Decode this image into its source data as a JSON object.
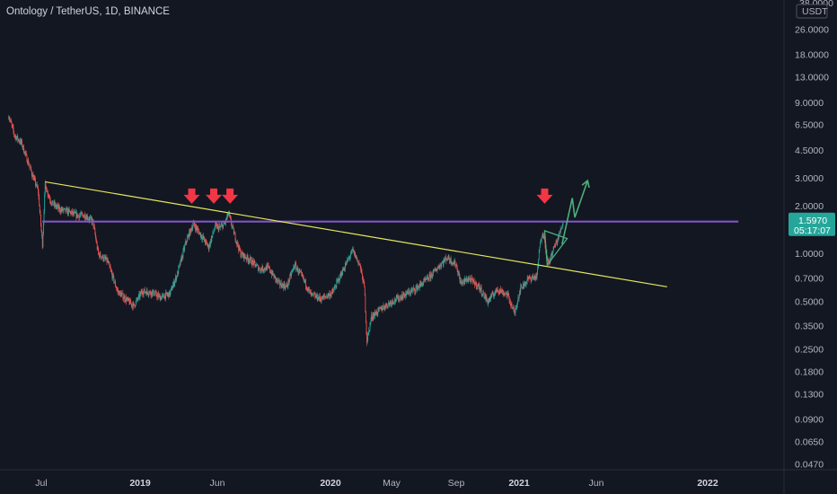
{
  "header": {
    "title": "Ontology / TetherUS, 1D, BINANCE"
  },
  "price_axis": {
    "currency": "USDT",
    "cutoff_label": "38.0000",
    "current_price": "1.5970",
    "countdown": "05:17:07",
    "current_price_color": "#26a69a"
  },
  "colors": {
    "background": "#131722",
    "up": "#26a69a",
    "down": "#ef5350",
    "trendline": "#e6e65c",
    "resistance": "#7e57c2",
    "arrow": "#f23645",
    "projection": "#4caf7d"
  },
  "chart_data": {
    "type": "candlestick",
    "title": "Ontology / TetherUS, 1D, BINANCE",
    "scale": "log",
    "ylim": [
      0.045,
      35
    ],
    "y_ticks": [
      {
        "value": 26,
        "label": "26.0000"
      },
      {
        "value": 18,
        "label": "18.0000"
      },
      {
        "value": 13,
        "label": "13.0000"
      },
      {
        "value": 9,
        "label": "9.0000"
      },
      {
        "value": 6.5,
        "label": "6.5000"
      },
      {
        "value": 4.5,
        "label": "4.5000"
      },
      {
        "value": 3,
        "label": "3.0000"
      },
      {
        "value": 2,
        "label": "2.0000"
      },
      {
        "value": 1,
        "label": "1.0000"
      },
      {
        "value": 0.7,
        "label": "0.7000"
      },
      {
        "value": 0.5,
        "label": "0.5000"
      },
      {
        "value": 0.35,
        "label": "0.3500"
      },
      {
        "value": 0.25,
        "label": "0.2500"
      },
      {
        "value": 0.18,
        "label": "0.1800"
      },
      {
        "value": 0.13,
        "label": "0.1300"
      },
      {
        "value": 0.09,
        "label": "0.0900"
      },
      {
        "value": 0.065,
        "label": "0.0650"
      },
      {
        "value": 0.047,
        "label": "0.0470"
      }
    ],
    "x_ticks": [
      {
        "date": "2018-07-01",
        "label": "Jul",
        "bold": false
      },
      {
        "date": "2019-01-01",
        "label": "2019",
        "bold": true
      },
      {
        "date": "2019-06-01",
        "label": "Jun",
        "bold": false
      },
      {
        "date": "2020-01-01",
        "label": "2020",
        "bold": true
      },
      {
        "date": "2020-05-01",
        "label": "May",
        "bold": false
      },
      {
        "date": "2020-09-01",
        "label": "Sep",
        "bold": false
      },
      {
        "date": "2021-01-01",
        "label": "2021",
        "bold": true
      },
      {
        "date": "2021-06-01",
        "label": "Jun",
        "bold": false
      },
      {
        "date": "2022-01-01",
        "label": "2022",
        "bold": true
      }
    ],
    "price_path": [
      [
        "2018-05-01",
        7.5
      ],
      [
        "2018-05-12",
        5.6
      ],
      [
        "2018-05-25",
        5.0
      ],
      [
        "2018-06-05",
        3.9
      ],
      [
        "2018-06-15",
        3.1
      ],
      [
        "2018-06-25",
        2.5
      ],
      [
        "2018-07-03",
        1.15
      ],
      [
        "2018-07-08",
        2.7
      ],
      [
        "2018-07-20",
        2.1
      ],
      [
        "2018-08-05",
        1.9
      ],
      [
        "2018-08-20",
        1.85
      ],
      [
        "2018-09-05",
        1.75
      ],
      [
        "2018-09-20",
        1.75
      ],
      [
        "2018-10-05",
        1.6
      ],
      [
        "2018-10-15",
        1.0
      ],
      [
        "2018-11-01",
        0.9
      ],
      [
        "2018-11-20",
        0.58
      ],
      [
        "2018-12-05",
        0.52
      ],
      [
        "2018-12-20",
        0.47
      ],
      [
        "2019-01-05",
        0.58
      ],
      [
        "2019-01-25",
        0.57
      ],
      [
        "2019-02-10",
        0.53
      ],
      [
        "2019-02-28",
        0.56
      ],
      [
        "2019-03-15",
        0.75
      ],
      [
        "2019-04-01",
        1.2
      ],
      [
        "2019-04-15",
        1.55
      ],
      [
        "2019-05-01",
        1.3
      ],
      [
        "2019-05-15",
        1.1
      ],
      [
        "2019-05-28",
        1.5
      ],
      [
        "2019-06-05",
        1.45
      ],
      [
        "2019-06-15",
        1.55
      ],
      [
        "2019-06-22",
        1.8
      ],
      [
        "2019-07-01",
        1.4
      ],
      [
        "2019-07-15",
        1.0
      ],
      [
        "2019-08-01",
        0.92
      ],
      [
        "2019-08-20",
        0.8
      ],
      [
        "2019-09-05",
        0.82
      ],
      [
        "2019-09-25",
        0.65
      ],
      [
        "2019-10-10",
        0.62
      ],
      [
        "2019-10-25",
        0.85
      ],
      [
        "2019-11-10",
        0.7
      ],
      [
        "2019-11-25",
        0.55
      ],
      [
        "2019-12-15",
        0.52
      ],
      [
        "2020-01-05",
        0.57
      ],
      [
        "2020-01-25",
        0.78
      ],
      [
        "2020-02-14",
        1.05
      ],
      [
        "2020-02-28",
        0.85
      ],
      [
        "2020-03-08",
        0.62
      ],
      [
        "2020-03-13",
        0.28
      ],
      [
        "2020-03-22",
        0.4
      ],
      [
        "2020-04-10",
        0.45
      ],
      [
        "2020-05-01",
        0.5
      ],
      [
        "2020-05-25",
        0.55
      ],
      [
        "2020-06-15",
        0.6
      ],
      [
        "2020-07-10",
        0.7
      ],
      [
        "2020-08-01",
        0.85
      ],
      [
        "2020-08-15",
        0.95
      ],
      [
        "2020-09-01",
        0.85
      ],
      [
        "2020-09-10",
        0.65
      ],
      [
        "2020-09-25",
        0.7
      ],
      [
        "2020-10-15",
        0.62
      ],
      [
        "2020-11-01",
        0.5
      ],
      [
        "2020-11-20",
        0.6
      ],
      [
        "2020-12-10",
        0.55
      ],
      [
        "2020-12-23",
        0.42
      ],
      [
        "2021-01-03",
        0.6
      ],
      [
        "2021-01-20",
        0.7
      ],
      [
        "2021-02-05",
        0.72
      ],
      [
        "2021-02-10",
        1.1
      ],
      [
        "2021-02-16",
        1.4
      ],
      [
        "2021-02-20",
        1.2
      ],
      [
        "2021-02-27",
        0.85
      ],
      [
        "2021-03-08",
        1.05
      ],
      [
        "2021-03-18",
        1.25
      ],
      [
        "2021-03-24",
        1.45
      ],
      [
        "2021-03-28",
        1.597
      ]
    ],
    "annotations": {
      "resistance_line": {
        "price": 1.6,
        "from": "2018-07-03",
        "to": "2022-03-01"
      },
      "trendline": {
        "points": [
          [
            "2018-07-08",
            2.85
          ],
          [
            "2021-10-15",
            0.62
          ]
        ]
      },
      "down_arrows": [
        {
          "date": "2019-04-12",
          "price": 2.3
        },
        {
          "date": "2019-05-25",
          "price": 2.3
        },
        {
          "date": "2019-06-25",
          "price": 2.3
        },
        {
          "date": "2021-02-20",
          "price": 2.3
        }
      ],
      "triangle": [
        [
          "2021-02-20",
          1.4
        ],
        [
          "2021-04-05",
          1.25
        ],
        [
          "2021-02-25",
          0.85
        ]
      ],
      "projection_path": [
        [
          "2021-03-26",
          1.15
        ],
        [
          "2021-04-15",
          2.25
        ],
        [
          "2021-04-20",
          1.7
        ],
        [
          "2021-05-15",
          2.9
        ]
      ]
    }
  }
}
